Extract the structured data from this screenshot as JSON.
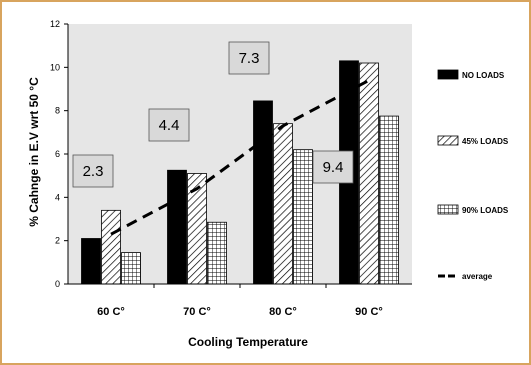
{
  "chart_data": {
    "type": "bar",
    "xlabel": "Cooling Temperature",
    "ylabel": "% Cahnge in E.V wrt 50 °C",
    "ylim": [
      0,
      12
    ],
    "yticks": [
      "0",
      "2",
      "4",
      "6",
      "8",
      "10",
      "12"
    ],
    "categories": [
      "60 C°",
      "70 C°",
      "80 C°",
      "90 C°"
    ],
    "series": [
      {
        "name": "NO LOADS",
        "values": [
          2.1,
          5.25,
          8.45,
          10.3
        ]
      },
      {
        "name": "45% LOADS",
        "values": [
          3.4,
          5.1,
          7.4,
          10.2
        ]
      },
      {
        "name": "90% LOADS",
        "values": [
          1.45,
          2.85,
          6.2,
          7.75
        ]
      }
    ],
    "average": {
      "name": "average",
      "values": [
        2.3,
        4.4,
        7.3,
        9.4
      ]
    },
    "annotations": [
      "2.3",
      "4.4",
      "7.3",
      "9.4"
    ],
    "legend_position": "right",
    "grid": false
  }
}
